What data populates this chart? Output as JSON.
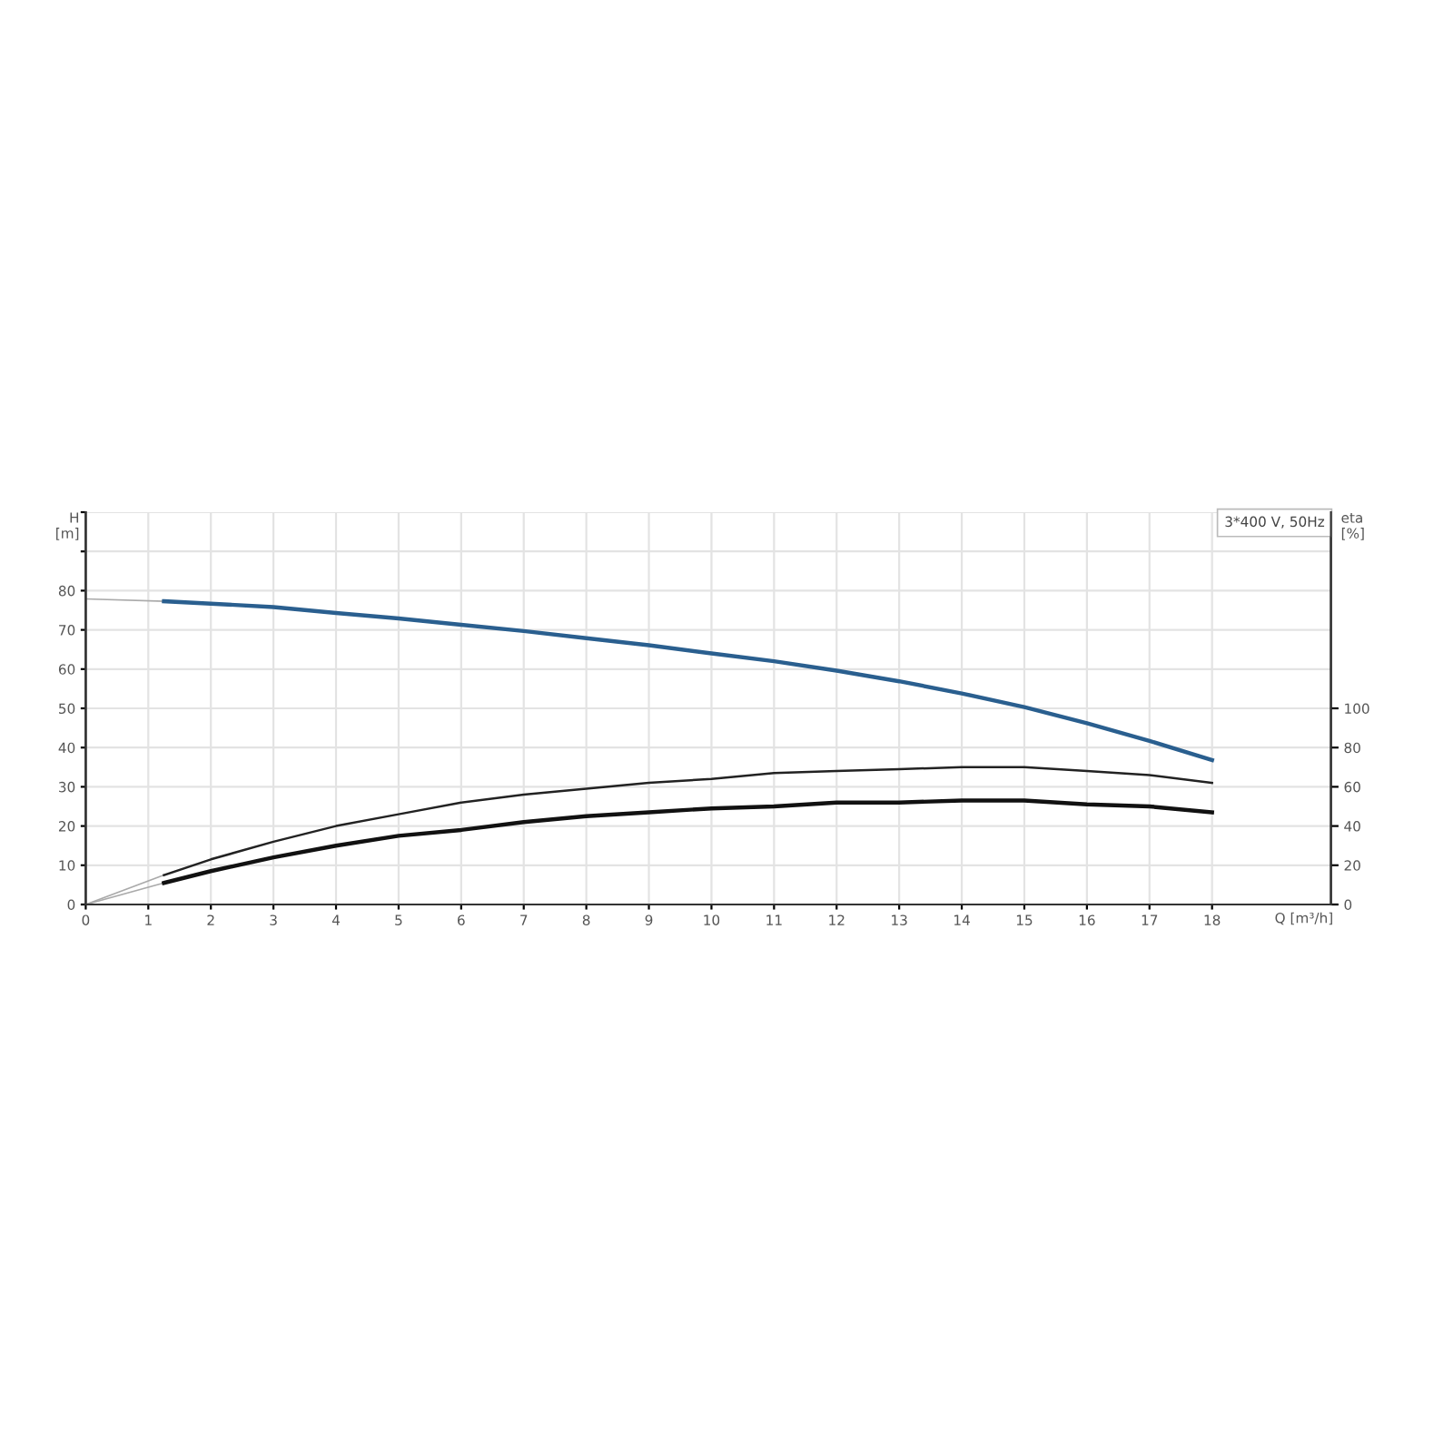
{
  "chart_data": {
    "type": "line",
    "xlabel": "Q [m³/h]",
    "ylabel": "H\n[m]",
    "y2label": "eta\n[%]",
    "annotations": [
      "3*400 V, 50Hz"
    ],
    "xlim": [
      0,
      19.9
    ],
    "ylim": [
      0,
      100
    ],
    "y2lim": [
      0,
      200
    ],
    "xticks": [
      0,
      1,
      2,
      3,
      4,
      5,
      6,
      7,
      8,
      9,
      10,
      11,
      12,
      13,
      14,
      15,
      16,
      17,
      18
    ],
    "yticks": [
      0,
      10,
      20,
      30,
      40,
      50,
      60,
      70,
      80,
      {
        "value": 90,
        "label": null
      },
      {
        "value": 100,
        "label": null
      }
    ],
    "y2ticks": [
      0,
      20,
      40,
      60,
      80,
      100
    ],
    "grid": true,
    "marker": "none",
    "line_style": "solid",
    "series": [
      {
        "color": "#aaaaaa",
        "x": [
          0,
          1.25
        ],
        "values": [
          77.9,
          77.3
        ]
      },
      {
        "color": "#2a5f8f",
        "x": [
          1.25,
          2,
          3,
          4,
          5,
          6,
          7,
          8,
          9,
          10,
          11,
          12,
          13,
          14,
          15,
          16,
          17,
          18
        ],
        "values": [
          77.3,
          76.7,
          75.8,
          74.3,
          72.9,
          71.3,
          69.7,
          67.9,
          66.1,
          64.0,
          62.0,
          59.6,
          56.9,
          53.8,
          50.3,
          46.2,
          41.7,
          36.8
        ]
      },
      {
        "color": "#aaaaaa",
        "axis": "y2",
        "x": [
          0,
          1.25
        ],
        "values": [
          0,
          15
        ]
      },
      {
        "color": "#222222",
        "axis": "y2",
        "x": [
          1.25,
          2,
          3,
          4,
          5,
          6,
          7,
          8,
          9,
          10,
          11,
          12,
          13,
          14,
          15,
          16,
          17,
          18
        ],
        "values": [
          15,
          23,
          32,
          40,
          46,
          52,
          56,
          59,
          62,
          64,
          67,
          68,
          69,
          70,
          70,
          68,
          66,
          62
        ]
      },
      {
        "color": "#aaaaaa",
        "axis": "y2",
        "x": [
          0,
          1.25
        ],
        "values": [
          0,
          11
        ]
      },
      {
        "color": "#111111",
        "axis": "y2",
        "x": [
          1.25,
          2,
          3,
          4,
          5,
          6,
          7,
          8,
          9,
          10,
          11,
          12,
          13,
          14,
          15,
          16,
          17,
          18
        ],
        "values": [
          11,
          17,
          24,
          30,
          35,
          38,
          42,
          45,
          47,
          49,
          50,
          52,
          52,
          53,
          53,
          51,
          50,
          47
        ]
      }
    ]
  }
}
